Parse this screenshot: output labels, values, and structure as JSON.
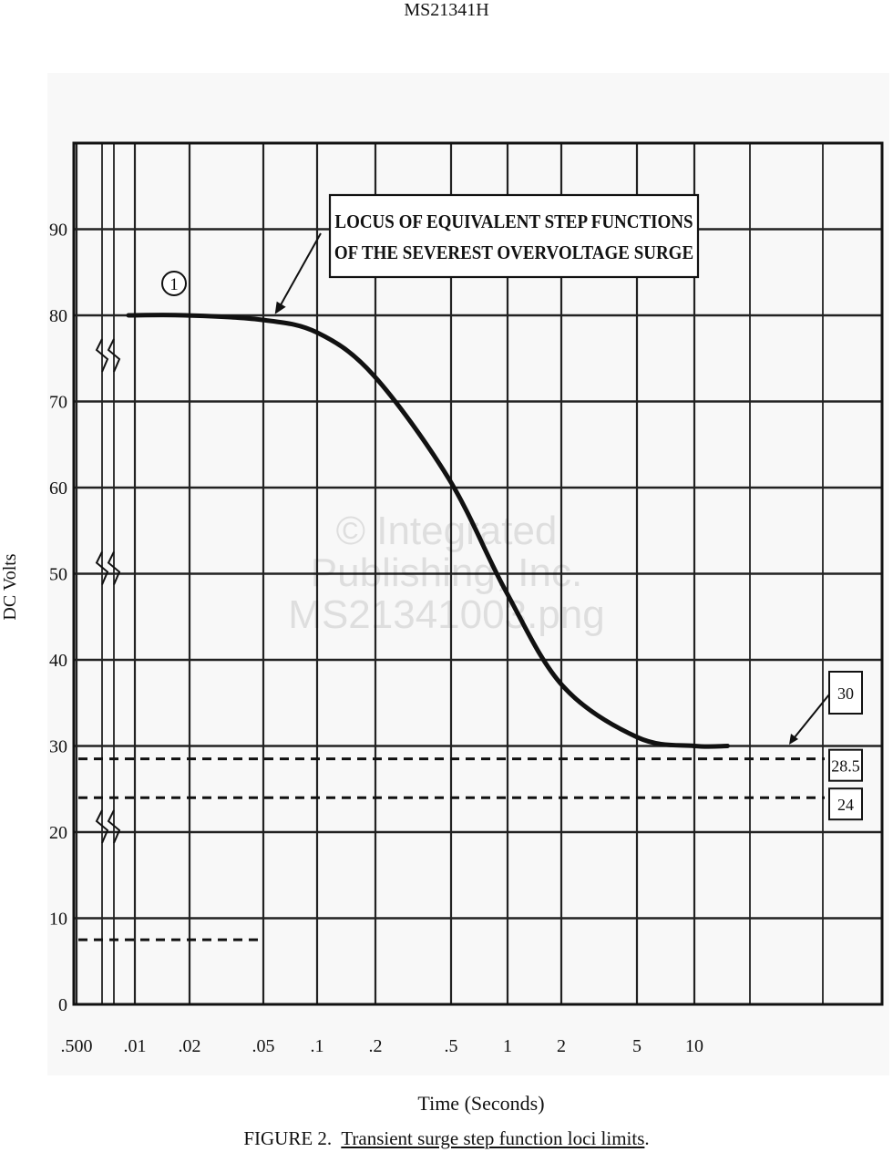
{
  "document": {
    "header": "MS21341H",
    "caption_prefix": "FIGURE 2.",
    "caption_title": "Transient surge step function loci limits",
    "caption_suffix": ".",
    "watermark": [
      "© Integrated",
      "Publishing, Inc.",
      "MS21341003.png"
    ]
  },
  "chart_data": {
    "type": "line",
    "title": "",
    "xlabel": "Time (Seconds)",
    "ylabel": "DC Volts",
    "x_scale": "log",
    "x_ticks": [
      ".500",
      ".01",
      ".02",
      ".05",
      ".1",
      ".2",
      ".5",
      "1",
      "2",
      "5",
      "10"
    ],
    "y_ticks": [
      "0",
      "10",
      "20",
      "30",
      "40",
      "50",
      "60",
      "70",
      "80",
      "90"
    ],
    "ylim": [
      0,
      100
    ],
    "grid": true,
    "series": [
      {
        "name": "",
        "style": "solid-bold",
        "x": [
          0.01,
          0.02,
          0.05,
          0.1,
          0.2,
          0.5,
          1,
          2,
          5,
          10,
          15
        ],
        "y": [
          80,
          80,
          79.5,
          78,
          73,
          61,
          48,
          37,
          31,
          30,
          30
        ]
      }
    ],
    "reference_lines": [
      {
        "value": 30,
        "style": "solid",
        "label": "30"
      },
      {
        "value": 28.5,
        "style": "dashed",
        "label": "28.5"
      },
      {
        "value": 24,
        "style": "dashed",
        "label": "24"
      },
      {
        "value": 7.5,
        "style": "dashed",
        "label": ""
      }
    ],
    "annotations": [
      {
        "text": "LOCUS OF EQUIVALENT STEP FUNCTIONS\nOF THE SEVEREST OVERVOLTAGE SURGE",
        "points_to": {
          "x": 0.05,
          "y": 79.5
        }
      },
      {
        "text": "1",
        "shape": "circle",
        "near": {
          "x": 0.013,
          "y": 80
        }
      }
    ]
  }
}
